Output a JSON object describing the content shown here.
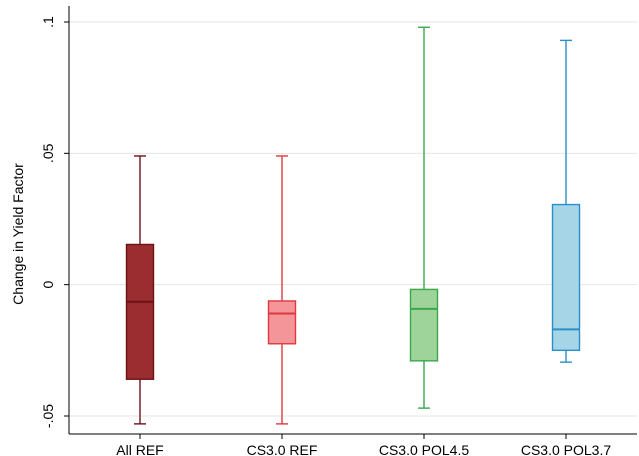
{
  "chart_data": {
    "type": "box",
    "title": "",
    "xlabel": "",
    "ylabel": "Change in Yield Factor",
    "ylim": [
      -0.05,
      0.1
    ],
    "y_ticks": [
      {
        "value": -0.05,
        "label": "-.05"
      },
      {
        "value": 0,
        "label": "0"
      },
      {
        "value": 0.05,
        "label": ".05"
      },
      {
        "value": 0.1,
        "label": ".1"
      }
    ],
    "grid": true,
    "legend": "none",
    "categories": [
      "All REF",
      "CS3.0 REF",
      "CS3.0 POL4.5",
      "CS3.0 POL3.7"
    ],
    "boxes": [
      {
        "category": "All REF",
        "min": -0.053,
        "q1": -0.036,
        "median": -0.0065,
        "q3": 0.0153,
        "max": 0.049,
        "fill": "#9b2d30",
        "stroke": "#6b1216"
      },
      {
        "category": "CS3.0 REF",
        "min": -0.053,
        "q1": -0.0225,
        "median": -0.011,
        "q3": -0.0062,
        "max": 0.049,
        "fill": "#f4959a",
        "stroke": "#e0383e"
      },
      {
        "category": "CS3.0 POL4.5",
        "min": -0.047,
        "q1": -0.029,
        "median": -0.0092,
        "q3": -0.0018,
        "max": 0.098,
        "fill": "#9ed49a",
        "stroke": "#3aa84a"
      },
      {
        "category": "CS3.0 POL3.7",
        "min": -0.0295,
        "q1": -0.025,
        "median": -0.017,
        "q3": 0.0305,
        "max": 0.093,
        "fill": "#a6d5e8",
        "stroke": "#2b8fc7"
      }
    ]
  }
}
